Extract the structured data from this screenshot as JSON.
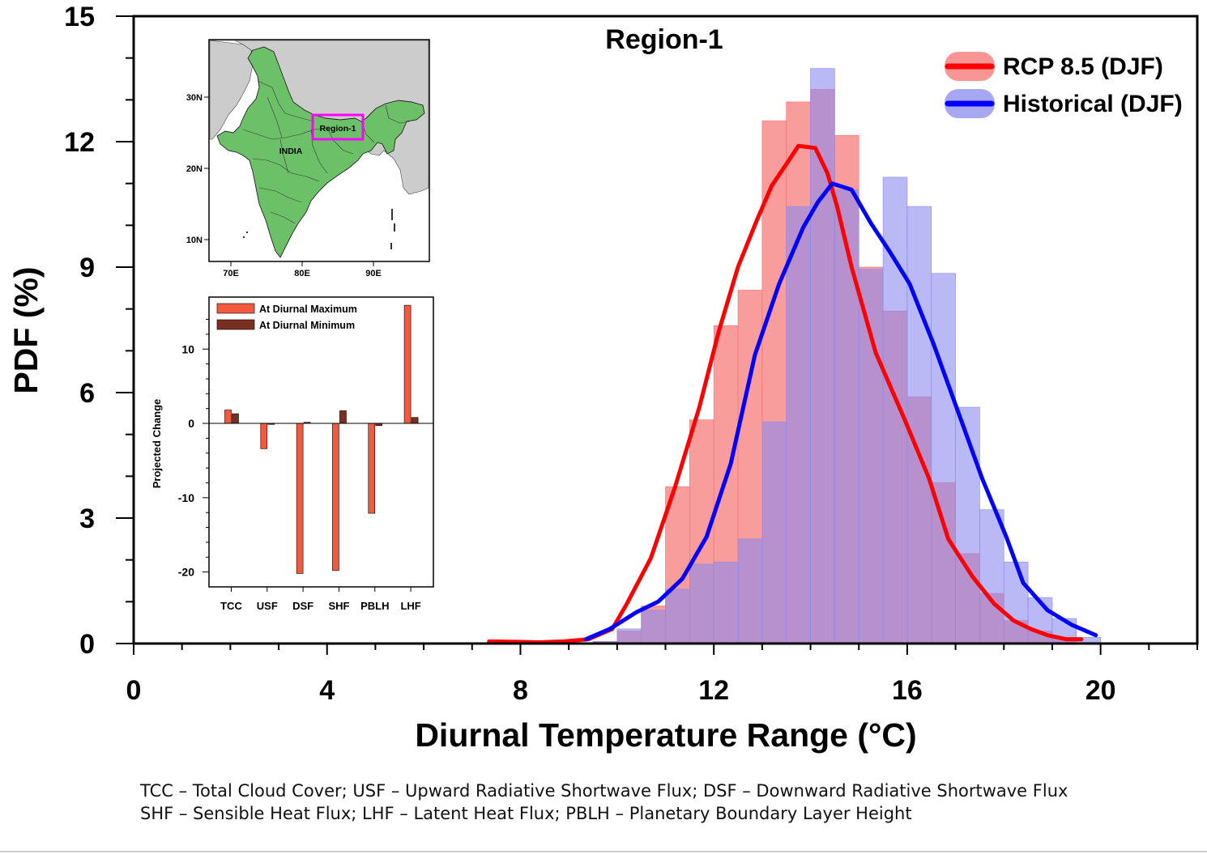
{
  "chart_data": [
    {
      "type": "histogram+line",
      "title": "Region-1",
      "xlabel": "Diurnal Temperature Range (°C)",
      "ylabel": "PDF (%)",
      "xlim": [
        0,
        22
      ],
      "ylim": [
        0,
        15
      ],
      "xticks": [
        0,
        4,
        8,
        12,
        16,
        20
      ],
      "yticks": [
        0,
        3,
        6,
        9,
        12,
        15
      ],
      "legend_position": "top-right",
      "series": [
        {
          "name": "RCP 8.5 (DJF)",
          "color": "#ff0000",
          "bar_color": "#f77272",
          "bins": [
            {
              "x0": 9.5,
              "x1": 10.0,
              "y": 0.05
            },
            {
              "x0": 10.0,
              "x1": 10.5,
              "y": 0.3
            },
            {
              "x0": 10.5,
              "x1": 11.0,
              "y": 0.9
            },
            {
              "x0": 11.0,
              "x1": 11.5,
              "y": 3.75
            },
            {
              "x0": 11.5,
              "x1": 12.0,
              "y": 5.35
            },
            {
              "x0": 12.0,
              "x1": 12.5,
              "y": 7.6
            },
            {
              "x0": 12.5,
              "x1": 13.0,
              "y": 8.45
            },
            {
              "x0": 13.0,
              "x1": 13.5,
              "y": 12.5
            },
            {
              "x0": 13.5,
              "x1": 14.0,
              "y": 12.95
            },
            {
              "x0": 14.0,
              "x1": 14.5,
              "y": 13.25
            },
            {
              "x0": 14.5,
              "x1": 15.0,
              "y": 12.15
            },
            {
              "x0": 15.0,
              "x1": 15.5,
              "y": 9.0
            },
            {
              "x0": 15.5,
              "x1": 16.0,
              "y": 7.95
            },
            {
              "x0": 16.0,
              "x1": 16.5,
              "y": 5.9
            },
            {
              "x0": 16.5,
              "x1": 17.0,
              "y": 3.85
            },
            {
              "x0": 17.0,
              "x1": 17.5,
              "y": 2.15
            },
            {
              "x0": 17.5,
              "x1": 18.0,
              "y": 1.2
            },
            {
              "x0": 18.0,
              "x1": 18.5,
              "y": 0.55
            },
            {
              "x0": 18.5,
              "x1": 19.0,
              "y": 0.3
            },
            {
              "x0": 19.0,
              "x1": 19.5,
              "y": 0.15
            }
          ],
          "curve": {
            "x": [
              7.35,
              7.9,
              8.4,
              8.9,
              9.4,
              9.9,
              10.2,
              10.7,
              11.2,
              11.7,
              12.1,
              12.5,
              12.9,
              13.2,
              13.55,
              13.75,
              14.1,
              14.35,
              14.55,
              14.85,
              15.35,
              15.95,
              16.45,
              16.85,
              17.35,
              17.8,
              18.2,
              18.55,
              18.9,
              19.3,
              19.6
            ],
            "y": [
              0.05,
              0.04,
              0.03,
              0.05,
              0.1,
              0.35,
              0.95,
              2.05,
              3.75,
              5.65,
              7.45,
              9.0,
              10.15,
              10.95,
              11.55,
              11.9,
              11.85,
              11.25,
              10.45,
              9.0,
              6.95,
              5.35,
              3.95,
              2.5,
              1.6,
              0.95,
              0.55,
              0.35,
              0.2,
              0.1,
              0.1
            ]
          }
        },
        {
          "name": "Historical (DJF)",
          "color": "#0000ff",
          "bar_color": "#8a8af0",
          "bins": [
            {
              "x0": 9.5,
              "x1": 10.0,
              "y": 0.05
            },
            {
              "x0": 10.0,
              "x1": 10.5,
              "y": 0.35
            },
            {
              "x0": 10.5,
              "x1": 11.0,
              "y": 0.8
            },
            {
              "x0": 11.0,
              "x1": 11.5,
              "y": 1.3
            },
            {
              "x0": 11.5,
              "x1": 12.0,
              "y": 1.9
            },
            {
              "x0": 12.0,
              "x1": 12.5,
              "y": 1.95
            },
            {
              "x0": 12.5,
              "x1": 13.0,
              "y": 2.5
            },
            {
              "x0": 13.0,
              "x1": 13.5,
              "y": 5.3
            },
            {
              "x0": 13.5,
              "x1": 14.0,
              "y": 10.45
            },
            {
              "x0": 14.0,
              "x1": 14.5,
              "y": 13.75
            },
            {
              "x0": 14.5,
              "x1": 15.0,
              "y": 10.85
            },
            {
              "x0": 15.0,
              "x1": 15.5,
              "y": 8.95
            },
            {
              "x0": 15.5,
              "x1": 16.0,
              "y": 11.15
            },
            {
              "x0": 16.0,
              "x1": 16.5,
              "y": 10.45
            },
            {
              "x0": 16.5,
              "x1": 17.0,
              "y": 8.85
            },
            {
              "x0": 17.0,
              "x1": 17.5,
              "y": 5.65
            },
            {
              "x0": 17.5,
              "x1": 18.0,
              "y": 3.2
            },
            {
              "x0": 18.0,
              "x1": 18.5,
              "y": 1.95
            },
            {
              "x0": 18.5,
              "x1": 19.0,
              "y": 1.1
            },
            {
              "x0": 19.0,
              "x1": 19.5,
              "y": 0.6
            },
            {
              "x0": 19.5,
              "x1": 20.0,
              "y": 0.15
            }
          ],
          "curve": {
            "x": [
              9.35,
              9.85,
              10.4,
              10.85,
              11.35,
              11.85,
              12.35,
              12.85,
              13.35,
              13.85,
              14.15,
              14.45,
              14.85,
              15.25,
              15.65,
              16.05,
              16.55,
              17.05,
              17.55,
              18.05,
              18.4,
              18.9,
              19.4,
              19.9
            ],
            "y": [
              0.1,
              0.35,
              0.75,
              1.0,
              1.55,
              2.55,
              4.3,
              6.9,
              8.6,
              9.95,
              10.55,
              11.0,
              10.85,
              10.05,
              9.35,
              8.6,
              7.15,
              5.55,
              3.95,
              2.55,
              1.45,
              0.8,
              0.45,
              0.2
            ]
          }
        }
      ]
    },
    {
      "type": "bar",
      "ylabel": "Projected Change",
      "ylim": [
        -22,
        17
      ],
      "yticks": [
        -20,
        -10,
        0,
        10
      ],
      "categories": [
        "TCC",
        "USF",
        "DSF",
        "SHF",
        "PBLH",
        "LHF"
      ],
      "legend_position": "top-left",
      "series": [
        {
          "name": "At Diurnal Maximum",
          "color": "#f25a40",
          "values": [
            1.8,
            -3.4,
            -20.2,
            -19.8,
            -12.1,
            15.9
          ]
        },
        {
          "name": "At Diurnal Minimum",
          "color": "#7a2f22",
          "values": [
            1.3,
            0.0,
            0.15,
            1.7,
            -0.3,
            0.8
          ]
        }
      ]
    }
  ],
  "inset_map": {
    "country_label": "INDIA",
    "region_label": "Region-1",
    "lat_labels": [
      "30N",
      "20N",
      "10N"
    ],
    "lon_labels": [
      "70E",
      "80E",
      "90E"
    ],
    "land_color": "#6bc068",
    "background_land_color": "#cccccc",
    "region_box_color": "#ff00ff"
  },
  "footnotes": [
    "TCC – Total Cloud Cover; USF – Upward Radiative Shortwave Flux; DSF – Downward Radiative Shortwave Flux",
    "SHF – Sensible Heat Flux; LHF – Latent Heat Flux; PBLH – Planetary Boundary Layer Height"
  ]
}
